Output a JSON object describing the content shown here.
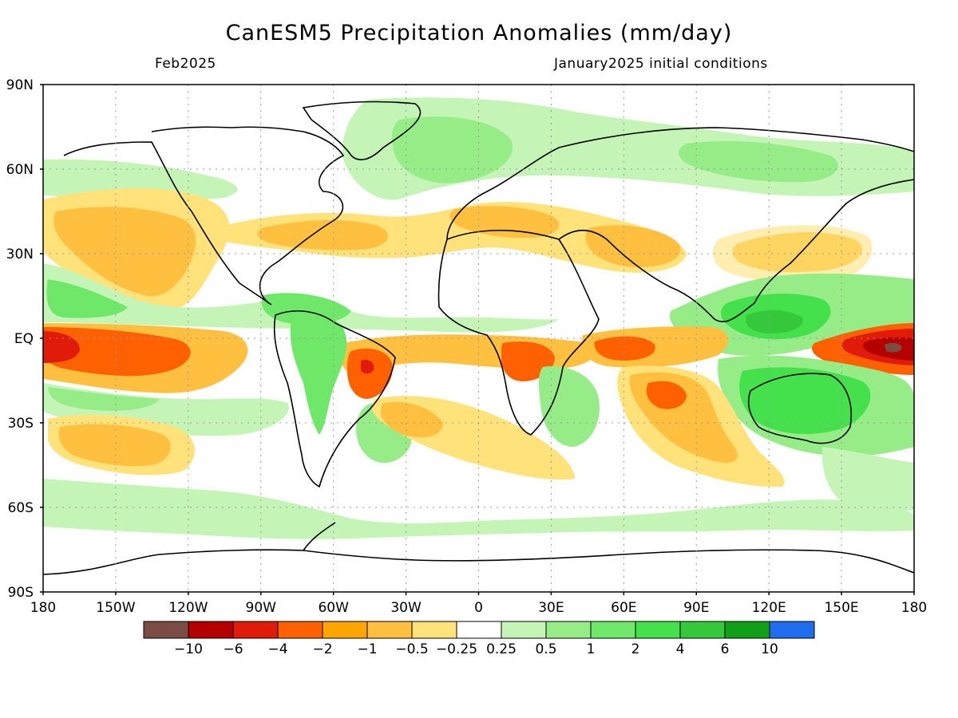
{
  "header": {
    "title": "CanESM5 Precipitation Anomalies (mm/day)",
    "forecast_month": "Feb2025",
    "init_conditions": "January2025 initial conditions"
  },
  "axes": {
    "lat_labels": [
      "90N",
      "60N",
      "30N",
      "EQ",
      "30S",
      "60S",
      "90S"
    ],
    "lon_labels": [
      "180",
      "150W",
      "120W",
      "90W",
      "60W",
      "30W",
      "0",
      "30E",
      "60E",
      "90E",
      "120E",
      "150E",
      "180"
    ]
  },
  "colorbar": {
    "colors": [
      "#7a4c43",
      "#b50000",
      "#e01b0a",
      "#ff6000",
      "#ffa500",
      "#ffc040",
      "#ffe27a",
      "#ffffff",
      "#c4f5b7",
      "#96ed88",
      "#6fe86a",
      "#45e14c",
      "#35c83b",
      "#10a018",
      "#1f6cef"
    ],
    "labels": [
      "−10",
      "−6",
      "−4",
      "−2",
      "−1",
      "−0.5",
      "−0.25",
      "0.25",
      "0.5",
      "1",
      "2",
      "4",
      "6",
      "10"
    ]
  },
  "palette": {
    "strong_dry": "#b50000",
    "dry_2": "#ff6000",
    "dry_1": "#ffa500",
    "dry_05": "#ffc040",
    "dry_025": "#ffe27a",
    "wet_025": "#c4f5b7",
    "wet_05": "#96ed88",
    "wet_1": "#6fe86a",
    "wet_2": "#45e14c",
    "wet_4": "#35c83b",
    "extreme_dry_core": "#7a4c43"
  }
}
